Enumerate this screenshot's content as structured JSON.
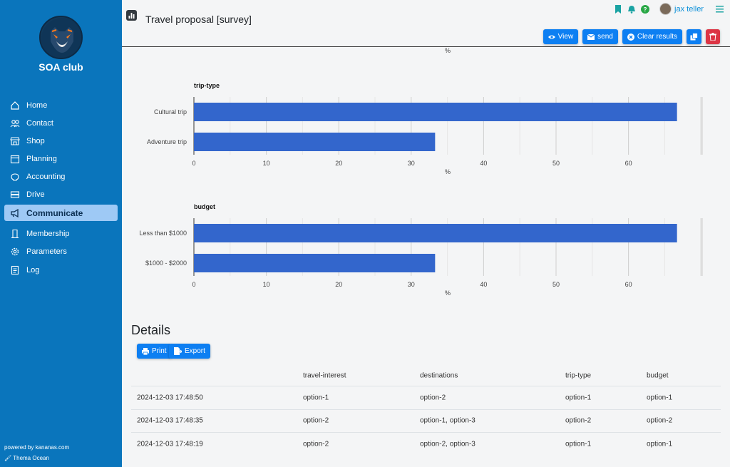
{
  "sidebar": {
    "club_name": "SOA club",
    "items": [
      {
        "label": "Home",
        "icon": "home-icon"
      },
      {
        "label": "Contact",
        "icon": "people-icon"
      },
      {
        "label": "Shop",
        "icon": "shop-icon"
      },
      {
        "label": "Planning",
        "icon": "calendar-icon"
      },
      {
        "label": "Accounting",
        "icon": "piggy-bank-icon"
      },
      {
        "label": "Drive",
        "icon": "drive-icon"
      },
      {
        "label": "Communicate",
        "icon": "megaphone-icon",
        "active": true
      },
      {
        "label": "Membership",
        "icon": "membership-icon"
      },
      {
        "label": "Parameters",
        "icon": "gear-icon"
      },
      {
        "label": "Log",
        "icon": "log-icon"
      }
    ],
    "powered_by": "powered by kananas.com",
    "theme": "Thema Ocean"
  },
  "header": {
    "title": "Travel proposal [survey]",
    "username": "jax teller",
    "buttons": {
      "view": "View",
      "send": "send",
      "clear": "Clear results"
    }
  },
  "colors": {
    "sidebar": "#0a75bc",
    "active_item": "#9ec9f5",
    "primary": "#0d7ff2",
    "danger": "#dc3545",
    "bar": "#3366cc"
  },
  "chart_data": [
    {
      "type": "bar",
      "orientation": "horizontal",
      "title": "trip-type",
      "categories": [
        "Cultural trip",
        "Adventure trip"
      ],
      "values": [
        66.7,
        33.3
      ],
      "xlabel": "%",
      "xlim": [
        0,
        70
      ],
      "xticks": [
        0,
        10,
        20,
        30,
        40,
        50,
        60
      ],
      "grid": true
    },
    {
      "type": "bar",
      "orientation": "horizontal",
      "title": "budget",
      "categories": [
        "Less than $1000",
        "$1000 - $2000"
      ],
      "values": [
        66.7,
        33.3
      ],
      "xlabel": "%",
      "xlim": [
        0,
        70
      ],
      "xticks": [
        0,
        10,
        20,
        30,
        40,
        50,
        60
      ],
      "grid": true
    }
  ],
  "top_axis_label": "%",
  "details": {
    "title": "Details",
    "print_label": "Print",
    "export_label": "Export",
    "columns": [
      "",
      "travel-interest",
      "destinations",
      "trip-type",
      "budget"
    ],
    "rows": [
      [
        "2024-12-03 17:48:50",
        "option-1",
        "option-2",
        "option-1",
        "option-1"
      ],
      [
        "2024-12-03 17:48:35",
        "option-2",
        "option-1, option-3",
        "option-2",
        "option-2"
      ],
      [
        "2024-12-03 17:48:19",
        "option-2",
        "option-2, option-3",
        "option-1",
        "option-1"
      ]
    ]
  }
}
